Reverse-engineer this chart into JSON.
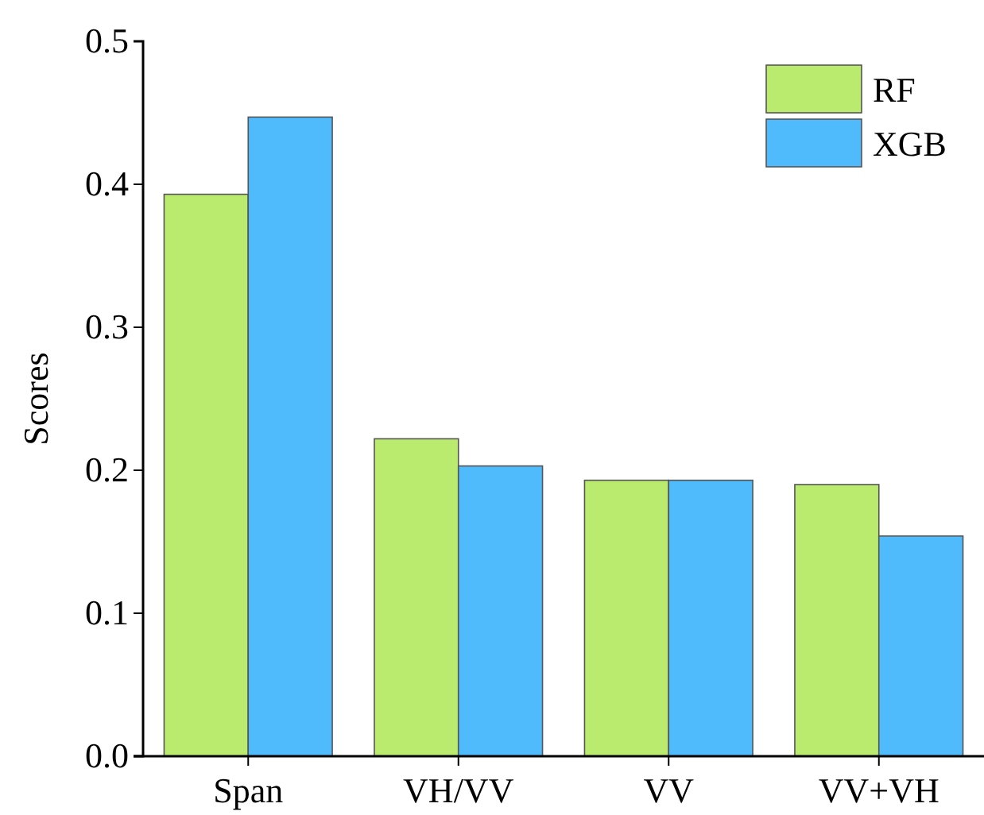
{
  "chart_data": {
    "type": "bar",
    "ylabel": "Scores",
    "categories": [
      "Span",
      "VH/VV",
      "VV",
      "VV+VH"
    ],
    "series": [
      {
        "name": "RF",
        "color": "#bbeb6e",
        "values": [
          0.393,
          0.222,
          0.193,
          0.19
        ]
      },
      {
        "name": "XGB",
        "color": "#4fbbfd",
        "values": [
          0.447,
          0.203,
          0.193,
          0.154
        ]
      }
    ],
    "ylim": [
      0,
      0.5
    ],
    "yticks": [
      {
        "value": 0,
        "label": "0.0"
      },
      {
        "value": 0.1,
        "label": "0.1"
      },
      {
        "value": 0.2,
        "label": "0.2"
      },
      {
        "value": 0.3,
        "label": "0.3"
      },
      {
        "value": 0.4,
        "label": "0.4"
      },
      {
        "value": 0.5,
        "label": "0.5"
      }
    ],
    "legend": "top right",
    "grid": false
  }
}
